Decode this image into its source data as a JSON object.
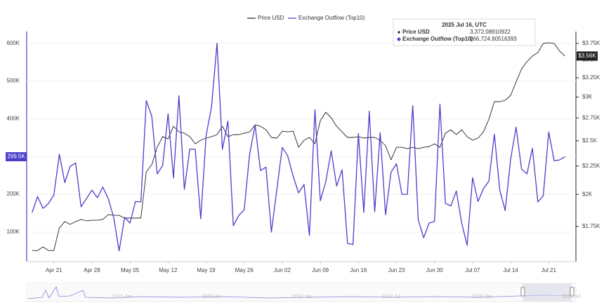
{
  "chart_data": {
    "type": "line",
    "x": [
      "2025-04-17",
      "2025-04-18",
      "2025-04-19",
      "2025-04-20",
      "2025-04-21",
      "2025-04-22",
      "2025-04-23",
      "2025-04-24",
      "2025-04-25",
      "2025-04-26",
      "2025-04-27",
      "2025-04-28",
      "2025-04-29",
      "2025-04-30",
      "2025-05-01",
      "2025-05-02",
      "2025-05-03",
      "2025-05-04",
      "2025-05-05",
      "2025-05-06",
      "2025-05-07",
      "2025-05-08",
      "2025-05-09",
      "2025-05-10",
      "2025-05-11",
      "2025-05-12",
      "2025-05-13",
      "2025-05-14",
      "2025-05-15",
      "2025-05-16",
      "2025-05-17",
      "2025-05-18",
      "2025-05-19",
      "2025-05-20",
      "2025-05-21",
      "2025-05-22",
      "2025-05-23",
      "2025-05-24",
      "2025-05-25",
      "2025-05-26",
      "2025-05-27",
      "2025-05-28",
      "2025-05-29",
      "2025-05-30",
      "2025-05-31",
      "2025-06-01",
      "2025-06-02",
      "2025-06-03",
      "2025-06-04",
      "2025-06-05",
      "2025-06-06",
      "2025-06-07",
      "2025-06-08",
      "2025-06-09",
      "2025-06-10",
      "2025-06-11",
      "2025-06-12",
      "2025-06-13",
      "2025-06-14",
      "2025-06-15",
      "2025-06-16",
      "2025-06-17",
      "2025-06-18",
      "2025-06-19",
      "2025-06-20",
      "2025-06-21",
      "2025-06-22",
      "2025-06-23",
      "2025-06-24",
      "2025-06-25",
      "2025-06-26",
      "2025-06-27",
      "2025-06-28",
      "2025-06-29",
      "2025-06-30",
      "2025-07-01",
      "2025-07-02",
      "2025-07-03",
      "2025-07-04",
      "2025-07-05",
      "2025-07-06",
      "2025-07-07",
      "2025-07-08",
      "2025-07-09",
      "2025-07-10",
      "2025-07-11",
      "2025-07-12",
      "2025-07-13",
      "2025-07-14",
      "2025-07-15",
      "2025-07-16",
      "2025-07-17",
      "2025-07-18",
      "2025-07-19",
      "2025-07-20",
      "2025-07-21",
      "2025-07-22",
      "2025-07-23",
      "2025-07-24"
    ],
    "xlim": [
      "2025-04-16",
      "2025-07-26"
    ],
    "xticks": [
      {
        "value": "2025-04-21",
        "label": "Apr 21"
      },
      {
        "value": "2025-04-28",
        "label": "Apr 28"
      },
      {
        "value": "2025-05-05",
        "label": "May 05"
      },
      {
        "value": "2025-05-12",
        "label": "May 12"
      },
      {
        "value": "2025-05-19",
        "label": "May 19"
      },
      {
        "value": "2025-05-26",
        "label": "May 26"
      },
      {
        "value": "2025-06-02",
        "label": "Jun 02"
      },
      {
        "value": "2025-06-09",
        "label": "Jun 09"
      },
      {
        "value": "2025-06-16",
        "label": "Jun 16"
      },
      {
        "value": "2025-06-23",
        "label": "Jun 23"
      },
      {
        "value": "2025-06-30",
        "label": "Jun 30"
      },
      {
        "value": "2025-07-07",
        "label": "Jul 07"
      },
      {
        "value": "2025-07-14",
        "label": "Jul 14"
      },
      {
        "value": "2025-07-21",
        "label": "Jul 21"
      }
    ],
    "ylim": [
      22000,
      631000
    ],
    "yticks": [
      {
        "value": 100000,
        "label": "100K"
      },
      {
        "value": 200000,
        "label": "200K"
      },
      {
        "value": 300000,
        "label": "300K"
      },
      {
        "value": 400000,
        "label": "400K"
      },
      {
        "value": 500000,
        "label": "500K"
      },
      {
        "value": 600000,
        "label": "600K"
      }
    ],
    "y2lim": [
      1512,
      3940
    ],
    "y2log": true,
    "y2ticks": [
      {
        "value": 1750,
        "label": "$1.75K"
      },
      {
        "value": 2000,
        "label": "$2K"
      },
      {
        "value": 2250,
        "label": "$2.25K"
      },
      {
        "value": 2500,
        "label": "$2.5K"
      },
      {
        "value": 2750,
        "label": "$2.75K"
      },
      {
        "value": 3000,
        "label": "$3K"
      },
      {
        "value": 3250,
        "label": "$3.25K"
      },
      {
        "value": 3500,
        "label": "$3.5K"
      },
      {
        "value": 3750,
        "label": "$3.75K"
      }
    ],
    "grid": true,
    "legend": "top",
    "series": [
      {
        "name": "Price USD",
        "color": "#222222",
        "axis": "y2",
        "last_label": "$3.56K",
        "values": [
          1583,
          1583,
          1607,
          1583,
          1583,
          1739,
          1786,
          1765,
          1786,
          1801,
          1791,
          1796,
          1796,
          1801,
          1838,
          1833,
          1833,
          1812,
          1812,
          1812,
          1812,
          2197,
          2262,
          2433,
          2543,
          2520,
          2656,
          2594,
          2579,
          2543,
          2469,
          2506,
          2528,
          2543,
          2565,
          2656,
          2543,
          2565,
          2565,
          2579,
          2594,
          2671,
          2656,
          2618,
          2535,
          2528,
          2602,
          2594,
          2602,
          2433,
          2506,
          2535,
          2469,
          2719,
          2816,
          2751,
          2656,
          2594,
          2535,
          2535,
          2543,
          2528,
          2535,
          2535,
          2506,
          2448,
          2309,
          2433,
          2433,
          2419,
          2433,
          2419,
          2433,
          2441,
          2469,
          2433,
          2579,
          2618,
          2565,
          2618,
          2543,
          2506,
          2528,
          2594,
          2735,
          2942,
          2942,
          2959,
          3021,
          3193,
          3372.08910922,
          3476,
          3558,
          3610,
          3750,
          3761,
          3750,
          3631,
          3558
        ]
      },
      {
        "name": "Exchange Outflow (Top10)",
        "color": "#4b3fc9",
        "last_label": "299.5K",
        "values": [
          152000,
          194000,
          163000,
          176000,
          198000,
          306000,
          231000,
          274000,
          283000,
          167000,
          189000,
          211000,
          191000,
          219000,
          189000,
          139000,
          50000,
          139000,
          124000,
          181000,
          180000,
          448000,
          407000,
          254000,
          276000,
          413000,
          243000,
          461000,
          213000,
          320000,
          319000,
          135000,
          356000,
          432000,
          600000,
          319000,
          394000,
          117000,
          144000,
          159000,
          306000,
          383000,
          263000,
          272000,
          100000,
          213000,
          324000,
          302000,
          248000,
          204000,
          226000,
          91000,
          424000,
          183000,
          233000,
          315000,
          222000,
          265000,
          70000,
          67000,
          361000,
          152000,
          420000,
          154000,
          363000,
          146000,
          259000,
          281000,
          200000,
          200000,
          435000,
          133000,
          85000,
          124000,
          128000,
          439000,
          176000,
          169000,
          209000,
          124000,
          65000,
          244000,
          181000,
          215000,
          235000,
          359000,
          211000,
          157000,
          293000,
          378000,
          266724.90516393,
          254000,
          322000,
          180000,
          196000,
          365000,
          289000,
          291000,
          299500
        ]
      }
    ],
    "tooltip": {
      "title": "2025 Jul 16, UTC",
      "values": [
        {
          "value": 3372.08910922,
          "label": "3,372.08910922"
        },
        {
          "value": 266724.90516393,
          "label": "266,724.90516393"
        }
      ]
    },
    "navigator": {
      "labels": [
        "2023 Jan",
        "2023 Jul",
        "2024 Jan",
        "2024 Jul",
        "2025 Jan",
        "2025 Jul"
      ]
    }
  }
}
